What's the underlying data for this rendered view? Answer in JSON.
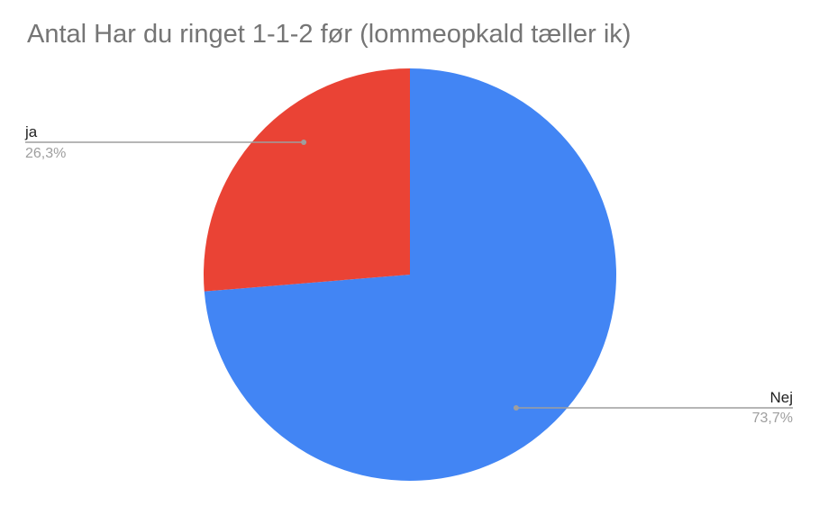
{
  "chart_data": {
    "type": "pie",
    "title": "Antal Har du ringet 1-1-2 før (lommeopkald tæller ik)",
    "slices": [
      {
        "label": "Nej",
        "value": 73.7,
        "percent_label": "73,7%",
        "color": "#4285f4"
      },
      {
        "label": "ja",
        "value": 26.3,
        "percent_label": "26,3%",
        "color": "#ea4335"
      }
    ],
    "legend": "none",
    "label_style": "callout lines with name and percentage"
  }
}
